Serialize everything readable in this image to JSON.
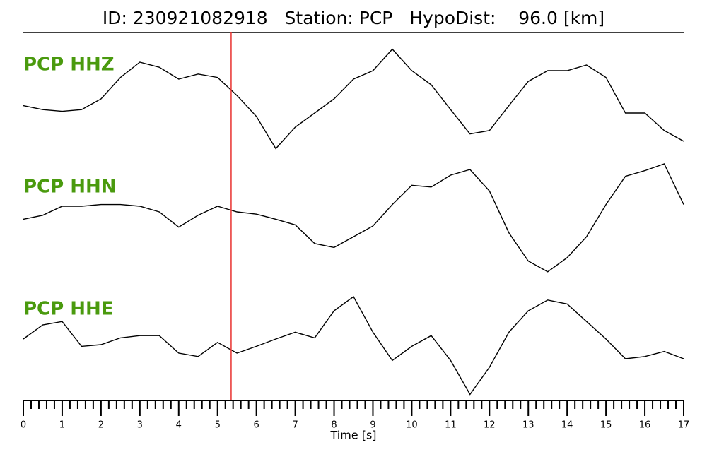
{
  "chart_data": {
    "type": "line",
    "title": "ID: 230921082918   Station: PCP   HypoDist:    96.0 [km]",
    "xlabel": "Time [s]",
    "x": [
      0,
      0.5,
      1,
      1.5,
      2,
      2.5,
      3,
      3.5,
      4,
      4.5,
      5,
      5.5,
      6,
      6.5,
      7,
      7.5,
      8,
      8.5,
      9,
      9.5,
      10,
      10.5,
      11,
      11.5,
      12,
      12.5,
      13,
      13.5,
      14,
      14.5,
      15,
      15.5,
      16,
      16.5,
      17
    ],
    "series": [
      {
        "name": "PCP HHZ",
        "color": "#000000",
        "values": [
          -0.12,
          -0.19,
          -0.22,
          -0.19,
          0,
          0.38,
          0.65,
          0.56,
          0.35,
          0.44,
          0.38,
          0.06,
          -0.31,
          -0.88,
          -0.5,
          -0.25,
          0,
          0.35,
          0.5,
          0.88,
          0.5,
          0.25,
          -0.19,
          -0.62,
          -0.56,
          -0.12,
          0.31,
          0.5,
          0.5,
          0.6,
          0.38,
          -0.25,
          -0.25,
          -0.56,
          -0.75
        ]
      },
      {
        "name": "PCP HHN",
        "color": "#000000",
        "values": [
          0.02,
          0.09,
          0.25,
          0.25,
          0.28,
          0.28,
          0.25,
          0.15,
          -0.12,
          0.09,
          0.25,
          0.15,
          0.11,
          0.02,
          -0.08,
          -0.41,
          -0.48,
          -0.29,
          -0.1,
          0.28,
          0.62,
          0.59,
          0.8,
          0.9,
          0.52,
          -0.22,
          -0.72,
          -0.91,
          -0.66,
          -0.29,
          0.28,
          0.78,
          0.88,
          1,
          0.28
        ]
      },
      {
        "name": "PCP HHE",
        "color": "#000000",
        "values": [
          0.1,
          0.35,
          0.41,
          -0.03,
          0,
          0.12,
          0.16,
          0.16,
          -0.15,
          -0.21,
          0.04,
          -0.15,
          -0.03,
          0.1,
          0.22,
          0.12,
          0.6,
          0.85,
          0.22,
          -0.28,
          -0.03,
          0.16,
          -0.28,
          -0.88,
          -0.4,
          0.22,
          0.6,
          0.79,
          0.72,
          0.41,
          0.1,
          -0.25,
          -0.21,
          -0.12,
          -0.25
        ]
      }
    ],
    "label_color": "#4a9a0e",
    "ylim": [
      -1,
      1
    ],
    "xlim": [
      0,
      17
    ],
    "xticks": [
      0,
      1,
      2,
      3,
      4,
      5,
      6,
      7,
      8,
      9,
      10,
      11,
      12,
      13,
      14,
      15,
      16,
      17
    ],
    "xminorticks": [
      0.2,
      0.4,
      0.6,
      0.8,
      1.2,
      1.4,
      1.6,
      1.8,
      2.2,
      2.4,
      2.6,
      2.8,
      3.2,
      3.4,
      3.6,
      3.8,
      4.2,
      4.4,
      4.6,
      4.8,
      5.2,
      5.4,
      5.6,
      5.8,
      6.2,
      6.4,
      6.6,
      6.8,
      7.2,
      7.4,
      7.6,
      7.8,
      8.2,
      8.4,
      8.6,
      8.8,
      9.2,
      9.4,
      9.6,
      9.8,
      10.2,
      10.4,
      10.6,
      10.8,
      11.2,
      11.4,
      11.6,
      11.8,
      12.2,
      12.4,
      12.6,
      12.8,
      13.2,
      13.4,
      13.6,
      13.8,
      14.2,
      14.4,
      14.6,
      14.8,
      15.2,
      15.4,
      15.6,
      15.8,
      16.2,
      16.4,
      16.6,
      16.8
    ],
    "vline": {
      "x": 5.35,
      "color": "#e8312f"
    }
  }
}
